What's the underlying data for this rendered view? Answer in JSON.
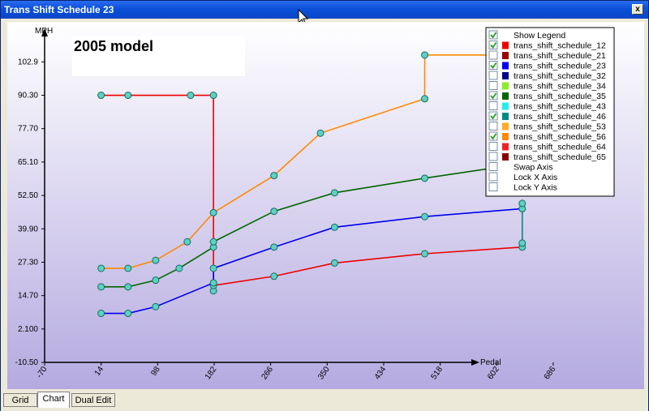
{
  "window": {
    "title": "Trans Shift Schedule 23",
    "close_label": "x"
  },
  "annotation": "2005 model",
  "tabs": [
    {
      "label": "Grid",
      "active": false
    },
    {
      "label": "Chart",
      "active": true
    },
    {
      "label": "Dual Edit",
      "active": false
    }
  ],
  "legend": {
    "items": [
      {
        "label": "Show Legend",
        "checked": true,
        "color": null
      },
      {
        "label": "trans_shift_schedule_12",
        "checked": true,
        "color": "#ee0000"
      },
      {
        "label": "trans_shift_schedule_21",
        "checked": false,
        "color": "#990000"
      },
      {
        "label": "trans_shift_schedule_23",
        "checked": true,
        "color": "#0000ee"
      },
      {
        "label": "trans_shift_schedule_32",
        "checked": false,
        "color": "#000088"
      },
      {
        "label": "trans_shift_schedule_34",
        "checked": false,
        "color": "#88ee22"
      },
      {
        "label": "trans_shift_schedule_35",
        "checked": true,
        "color": "#006600"
      },
      {
        "label": "trans_shift_schedule_43",
        "checked": false,
        "color": "#22eeee"
      },
      {
        "label": "trans_shift_schedule_46",
        "checked": true,
        "color": "#008888"
      },
      {
        "label": "trans_shift_schedule_53",
        "checked": false,
        "color": "#ffaa22"
      },
      {
        "label": "trans_shift_schedule_56",
        "checked": true,
        "color": "#ff8800"
      },
      {
        "label": "trans_shift_schedule_64",
        "checked": false,
        "color": "#ee2222"
      },
      {
        "label": "trans_shift_schedule_65",
        "checked": false,
        "color": "#880000"
      },
      {
        "label": "Swap Axis",
        "checked": false,
        "color": null
      },
      {
        "label": "Lock X Axis",
        "checked": false,
        "color": null
      },
      {
        "label": "Lock Y Axis",
        "checked": false,
        "color": null
      }
    ]
  },
  "chart_data": {
    "type": "line",
    "xlabel": "Pedal",
    "ylabel": "MPH",
    "xlim": [
      -70,
      750
    ],
    "ylim": [
      -10.5,
      118
    ],
    "xticks": [
      "-70",
      "14",
      "98",
      "182",
      "266",
      "350",
      "434",
      "518",
      "602",
      "686"
    ],
    "xtick_values": [
      -70,
      14,
      98,
      182,
      266,
      350,
      434,
      518,
      602,
      686
    ],
    "yticks": [
      "102.9",
      "90.30",
      "77.70",
      "65.10",
      "52.50",
      "39.90",
      "27.30",
      "14.70",
      "2.100",
      "-10.50"
    ],
    "ytick_values": [
      102.9,
      90.3,
      77.7,
      65.1,
      52.5,
      39.9,
      27.3,
      14.7,
      2.1,
      -10.5
    ],
    "marker_color": "#5ad2c4",
    "series": [
      {
        "color": "#ff8800",
        "x": [
          14,
          54,
          95,
          142,
          181,
          271,
          340,
          495,
          495,
          680
        ],
        "y": [
          25,
          25,
          28,
          35,
          46,
          60,
          76,
          89,
          105.5,
          105.5
        ]
      },
      {
        "color": "#ee0000",
        "x": [
          14,
          54,
          147,
          181,
          181,
          181,
          271,
          361,
          495,
          640
        ],
        "y": [
          90.3,
          90.3,
          90.3,
          90.3,
          16.5,
          18.5,
          22,
          27,
          30.5,
          33
        ]
      },
      {
        "color": "#006600",
        "x": [
          14,
          54,
          95,
          130,
          181,
          181,
          271,
          361,
          495,
          640
        ],
        "y": [
          18,
          18,
          20.5,
          25,
          33,
          35,
          46.5,
          53.5,
          59,
          64.5
        ]
      },
      {
        "color": "#0000ee",
        "x": [
          14,
          54,
          95,
          181,
          181,
          271,
          361,
          495,
          640
        ],
        "y": [
          8,
          8,
          10.5,
          19.5,
          25,
          33,
          40.5,
          44.5,
          47.5
        ]
      },
      {
        "color": "#008888",
        "x": [
          640,
          640
        ],
        "y": [
          34.5,
          49.5
        ]
      }
    ]
  }
}
